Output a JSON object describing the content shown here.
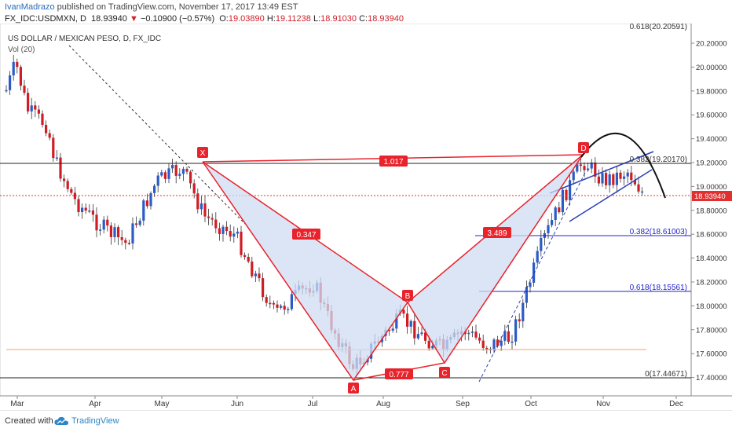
{
  "header": {
    "author": "IvanMadrazo",
    "published_text": "published on TradingView.com, November 17, 2017 13:49 EST",
    "symbol": "FX_IDC:USDMXN, D",
    "last": "18.93940",
    "change": "−0.10900 (−0.57%)",
    "open_label": "O:",
    "open": "19.03890",
    "high_label": "H:",
    "high": "19.11238",
    "low_label": "L:",
    "low": "18.91030",
    "close_label": "C:",
    "close": "18.93940"
  },
  "chart": {
    "title": "US DOLLAR / MEXICAN PESO, D, FX_IDC",
    "volume_label": "Vol (20)",
    "price_axis": [
      "20.20000",
      "20.00000",
      "19.80000",
      "19.60000",
      "19.40000",
      "19.20000",
      "19.00000",
      "18.80000",
      "18.60000",
      "18.40000",
      "18.20000",
      "18.00000",
      "17.80000",
      "17.60000",
      "17.40000"
    ],
    "current_price_tag": "18.93940",
    "time_axis": [
      "Mar",
      "Apr",
      "May",
      "Jun",
      "Jul",
      "Aug",
      "Sep",
      "Oct",
      "Nov",
      "Dec"
    ],
    "pattern_points": [
      "X",
      "A",
      "B",
      "C",
      "D"
    ],
    "pattern_ratios": [
      "1.017",
      "0.347",
      "3.489",
      "0.777"
    ],
    "fib_levels": [
      "0.618(20.20591)",
      "0.382(19.20170)",
      "0.382(18.61003)",
      "0.618(18.15561)",
      "0(17.44671)"
    ]
  },
  "footer": {
    "created_with": "Created with",
    "brand": "TradingView"
  },
  "colors": {
    "up": "#2a5bc7",
    "down": "#d01c24",
    "pattern": "#e8232b",
    "pattern_fill": "#d9e4f5",
    "fib": "#2222cc",
    "price_line": "#e03030",
    "support": "#f0a070"
  }
}
